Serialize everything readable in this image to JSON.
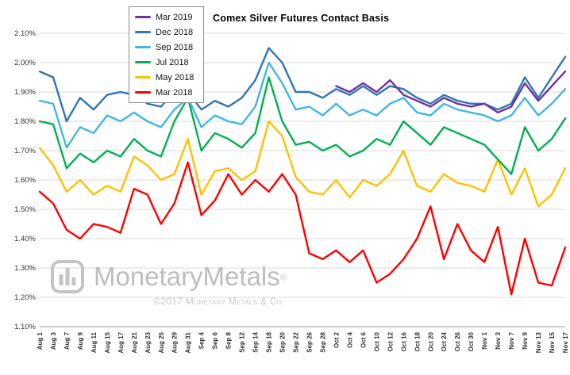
{
  "chart_data": {
    "type": "line",
    "title": "Comex Silver Futures Contact Basis",
    "xlabel": "",
    "ylabel": "",
    "ylim": [
      1.1,
      2.1
    ],
    "ytick_step": 0.1,
    "ytick_format": "0.00%",
    "grid": "horizontal",
    "legend_position": "top-left",
    "categories": [
      "Aug 1",
      "Aug 3",
      "Aug 7",
      "Aug 9",
      "Aug 11",
      "Aug 15",
      "Aug 17",
      "Aug 21",
      "Aug 23",
      "Aug 25",
      "Aug 29",
      "Aug 31",
      "Sep 4",
      "Sep 6",
      "Sep 8",
      "Sep 12",
      "Sep 14",
      "Sep 18",
      "Sep 20",
      "Sep 22",
      "Sep 26",
      "Sep 28",
      "Oct 2",
      "Oct 4",
      "Oct 6",
      "Oct 10",
      "Oct 12",
      "Oct 16",
      "Oct 18",
      "Oct 20",
      "Oct 24",
      "Oct 26",
      "Oct 30",
      "Nov 1",
      "Nov 3",
      "Nov 7",
      "Nov 9",
      "Nov 13",
      "Nov 15",
      "Nov 17"
    ],
    "series": [
      {
        "name": "Mar 2019",
        "color": "#7030A0",
        "values": [
          null,
          null,
          null,
          null,
          null,
          null,
          null,
          null,
          null,
          null,
          null,
          null,
          null,
          null,
          null,
          null,
          null,
          null,
          null,
          null,
          null,
          null,
          1.92,
          1.9,
          1.93,
          1.9,
          1.94,
          1.89,
          1.87,
          1.85,
          1.88,
          1.86,
          1.85,
          1.86,
          1.83,
          1.85,
          1.93,
          1.87,
          1.92,
          1.97
        ]
      },
      {
        "name": "Dec 2018",
        "color": "#2E75B6",
        "values": [
          1.97,
          1.95,
          1.8,
          1.88,
          1.84,
          1.89,
          1.9,
          1.89,
          1.86,
          1.85,
          1.9,
          1.9,
          1.84,
          1.87,
          1.85,
          1.88,
          1.94,
          2.05,
          2.0,
          1.9,
          1.9,
          1.88,
          1.91,
          1.89,
          1.92,
          1.89,
          1.92,
          1.91,
          1.88,
          1.86,
          1.89,
          1.87,
          1.86,
          1.86,
          1.84,
          1.86,
          1.95,
          1.88,
          1.95,
          2.02
        ]
      },
      {
        "name": "Sep 2018",
        "color": "#41B6E6",
        "values": [
          1.87,
          1.86,
          1.71,
          1.78,
          1.76,
          1.82,
          1.8,
          1.83,
          1.8,
          1.78,
          1.84,
          1.88,
          1.78,
          1.82,
          1.8,
          1.79,
          1.85,
          2.0,
          1.93,
          1.84,
          1.85,
          1.82,
          1.86,
          1.82,
          1.84,
          1.82,
          1.86,
          1.88,
          1.83,
          1.82,
          1.86,
          1.84,
          1.83,
          1.82,
          1.8,
          1.82,
          1.88,
          1.82,
          1.86,
          1.91
        ]
      },
      {
        "name": "Jul 2018",
        "color": "#00B050",
        "values": [
          1.8,
          1.79,
          1.64,
          1.69,
          1.66,
          1.7,
          1.68,
          1.74,
          1.7,
          1.68,
          1.8,
          1.88,
          1.7,
          1.76,
          1.74,
          1.71,
          1.76,
          1.95,
          1.8,
          1.72,
          1.73,
          1.7,
          1.72,
          1.68,
          1.7,
          1.74,
          1.72,
          1.8,
          1.76,
          1.72,
          1.78,
          1.76,
          1.74,
          1.72,
          1.67,
          1.62,
          1.78,
          1.7,
          1.74,
          1.81
        ]
      },
      {
        "name": "May 2018",
        "color": "#FFC000",
        "values": [
          1.71,
          1.65,
          1.56,
          1.6,
          1.55,
          1.58,
          1.56,
          1.68,
          1.65,
          1.6,
          1.62,
          1.74,
          1.55,
          1.63,
          1.64,
          1.6,
          1.63,
          1.8,
          1.75,
          1.61,
          1.56,
          1.55,
          1.6,
          1.54,
          1.6,
          1.58,
          1.62,
          1.7,
          1.58,
          1.56,
          1.62,
          1.59,
          1.58,
          1.56,
          1.67,
          1.55,
          1.64,
          1.51,
          1.55,
          1.64
        ]
      },
      {
        "name": "Mar 2018",
        "color": "#FF0000",
        "values": [
          1.56,
          1.52,
          1.43,
          1.4,
          1.45,
          1.44,
          1.42,
          1.57,
          1.55,
          1.45,
          1.52,
          1.66,
          1.48,
          1.53,
          1.62,
          1.55,
          1.6,
          1.56,
          1.62,
          1.55,
          1.35,
          1.33,
          1.36,
          1.32,
          1.36,
          1.25,
          1.28,
          1.33,
          1.4,
          1.51,
          1.33,
          1.45,
          1.36,
          1.32,
          1.44,
          1.21,
          1.4,
          1.25,
          1.24,
          1.37
        ]
      }
    ]
  },
  "watermark": {
    "brand": "MonetaryMetals",
    "registered": "®",
    "caption": "©2017 Monetary Metals & Co."
  }
}
